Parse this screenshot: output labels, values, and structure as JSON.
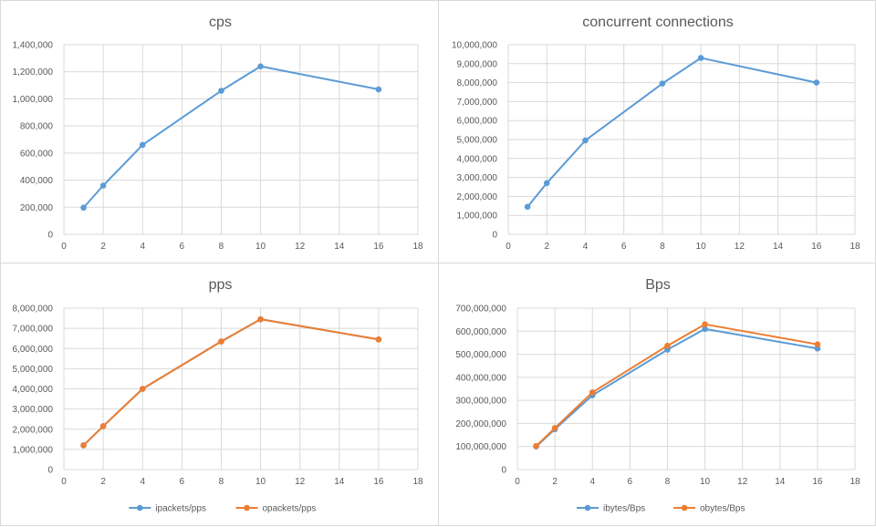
{
  "colors": {
    "blue": "#5b9bd5",
    "orange": "#ed7d31",
    "grid": "#d9d9d9",
    "text": "#595959"
  },
  "chart_data": [
    {
      "type": "scatter-line",
      "title": "cps",
      "xlim": [
        0,
        18
      ],
      "ylim": [
        0,
        1400000
      ],
      "xticks": [
        0,
        2,
        4,
        6,
        8,
        10,
        12,
        14,
        16,
        18
      ],
      "yticks": [
        0,
        200000,
        400000,
        600000,
        800000,
        1000000,
        1200000,
        1400000
      ],
      "grid": true,
      "legend": "none",
      "series": [
        {
          "color": "#5b9bd5",
          "x": [
            1,
            2,
            4,
            8,
            10,
            16
          ],
          "y": [
            197000,
            360000,
            660000,
            1060000,
            1240000,
            1070000
          ]
        }
      ]
    },
    {
      "type": "scatter-line",
      "title": "concurrent connections",
      "xlim": [
        0,
        18
      ],
      "ylim": [
        0,
        10000000
      ],
      "xticks": [
        0,
        2,
        4,
        6,
        8,
        10,
        12,
        14,
        16,
        18
      ],
      "yticks": [
        0,
        1000000,
        2000000,
        3000000,
        4000000,
        5000000,
        6000000,
        7000000,
        8000000,
        9000000,
        10000000
      ],
      "grid": true,
      "legend": "none",
      "series": [
        {
          "color": "#5b9bd5",
          "x": [
            1,
            2,
            4,
            8,
            10,
            16
          ],
          "y": [
            1450000,
            2700000,
            4950000,
            7950000,
            9300000,
            8000000
          ]
        }
      ]
    },
    {
      "type": "scatter-line",
      "title": "pps",
      "xlim": [
        0,
        18
      ],
      "ylim": [
        0,
        8000000
      ],
      "xticks": [
        0,
        2,
        4,
        6,
        8,
        10,
        12,
        14,
        16,
        18
      ],
      "yticks": [
        0,
        1000000,
        2000000,
        3000000,
        4000000,
        5000000,
        6000000,
        7000000,
        8000000
      ],
      "grid": true,
      "legend": "bottom",
      "series": [
        {
          "name": "ipackets/pps",
          "color": "#5b9bd5",
          "x": [
            1,
            2,
            4,
            8,
            10,
            16
          ],
          "y": [
            1200000,
            2150000,
            4000000,
            6350000,
            7450000,
            6450000
          ]
        },
        {
          "name": "opackets/pps",
          "color": "#ed7d31",
          "x": [
            1,
            2,
            4,
            8,
            10,
            16
          ],
          "y": [
            1200000,
            2150000,
            4000000,
            6350000,
            7450000,
            6450000
          ]
        }
      ]
    },
    {
      "type": "scatter-line",
      "title": "Bps",
      "xlim": [
        0,
        18
      ],
      "ylim": [
        0,
        700000000
      ],
      "xticks": [
        0,
        2,
        4,
        6,
        8,
        10,
        12,
        14,
        16,
        18
      ],
      "yticks": [
        0,
        100000000,
        200000000,
        300000000,
        400000000,
        500000000,
        600000000,
        700000000
      ],
      "grid": true,
      "legend": "bottom",
      "series": [
        {
          "name": "ibytes/Bps",
          "color": "#5b9bd5",
          "x": [
            1,
            2,
            4,
            8,
            10,
            16
          ],
          "y": [
            100000000,
            175000000,
            322000000,
            520000000,
            610000000,
            525000000
          ]
        },
        {
          "name": "obytes/Bps",
          "color": "#ed7d31",
          "x": [
            1,
            2,
            4,
            8,
            10,
            16
          ],
          "y": [
            102000000,
            180000000,
            335000000,
            537000000,
            630000000,
            543000000
          ]
        }
      ]
    }
  ]
}
